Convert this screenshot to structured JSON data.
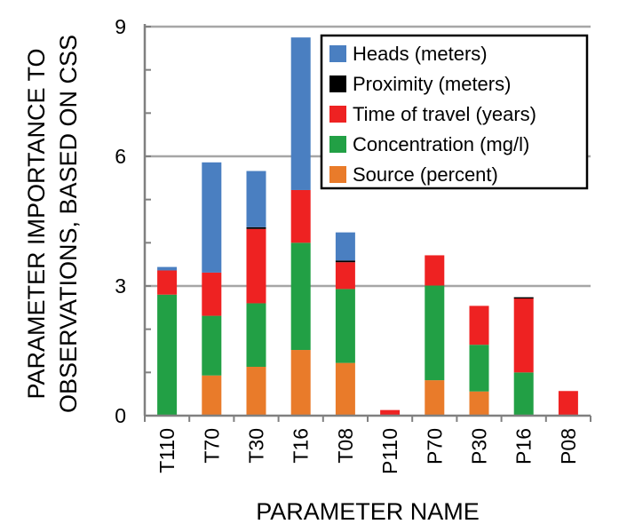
{
  "chart_data": {
    "type": "bar",
    "stacked": true,
    "categories": [
      "T110",
      "T70",
      "T30",
      "T16",
      "T08",
      "P110",
      "P70",
      "P30",
      "P16",
      "P08"
    ],
    "series": [
      {
        "name": "Source (percent)",
        "color": "#E97B2A",
        "values": [
          0,
          0.93,
          1.13,
          1.52,
          1.22,
          0,
          0.82,
          0.56,
          0,
          0
        ]
      },
      {
        "name": "Concentration (mg/l)",
        "color": "#22A045",
        "values": [
          2.8,
          1.38,
          1.47,
          2.48,
          1.71,
          0,
          2.19,
          1.08,
          1.0,
          0
        ]
      },
      {
        "name": "Time of travel (years)",
        "color": "#EE2222",
        "values": [
          0.56,
          1.0,
          1.72,
          1.22,
          0.62,
          0.13,
          0.7,
          0.9,
          1.72,
          0.57
        ]
      },
      {
        "name": "Proximity (meters)",
        "color": "#000000",
        "values": [
          0,
          0,
          0.04,
          0,
          0.04,
          0,
          0,
          0,
          0.02,
          0
        ]
      },
      {
        "name": "Heads (meters)",
        "color": "#4A7FC1",
        "values": [
          0.08,
          2.55,
          1.3,
          3.53,
          0.65,
          0,
          0,
          0,
          0,
          0
        ]
      }
    ],
    "xlabel": "PARAMETER NAME",
    "ylabel_lines": [
      "PARAMETER IMPORTANCE TO",
      "OBSERVATIONS, BASED ON CSS"
    ],
    "ylim": [
      0,
      9
    ],
    "yticks": [
      0,
      3,
      6,
      9
    ],
    "grid": true,
    "legend_position": "top-right",
    "legend_order": [
      "Heads (meters)",
      "Proximity (meters)",
      "Time of travel (years)",
      "Concentration (mg/l)",
      "Source (percent)"
    ]
  }
}
